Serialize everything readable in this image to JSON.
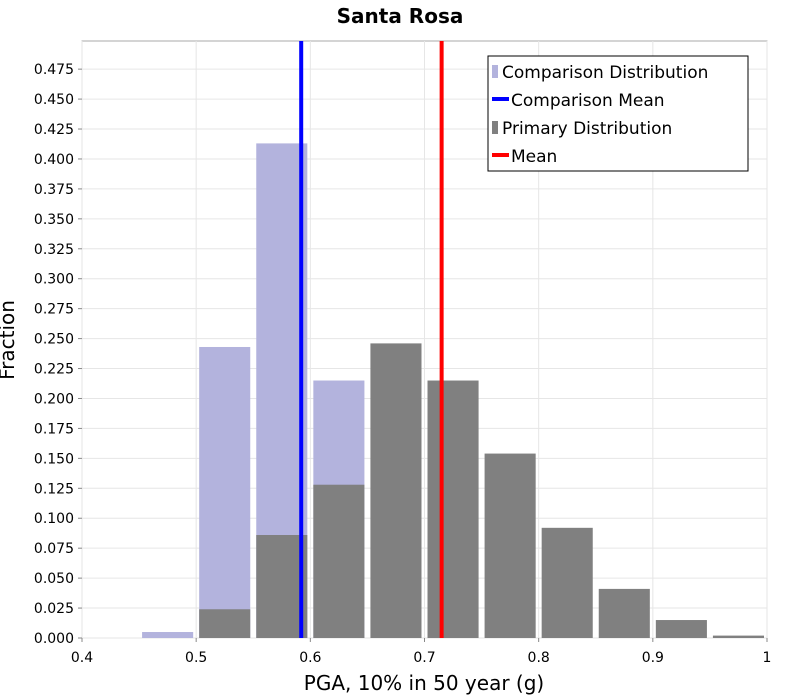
{
  "chart_data": {
    "type": "bar",
    "title": "Santa Rosa",
    "xlabel": "PGA, 10% in 50 year (g)",
    "ylabel": "Fraction",
    "xlim": [
      0.4,
      1.0
    ],
    "ylim": [
      0,
      0.4985
    ],
    "xticks": [
      "0.4",
      "0.5",
      "0.6",
      "0.7",
      "0.8",
      "0.9",
      "1"
    ],
    "yticks": [
      "0.000",
      "0.025",
      "0.050",
      "0.075",
      "0.100",
      "0.125",
      "0.150",
      "0.175",
      "0.200",
      "0.225",
      "0.250",
      "0.275",
      "0.300",
      "0.325",
      "0.350",
      "0.375",
      "0.400",
      "0.425",
      "0.450",
      "0.475"
    ],
    "bin_width": 0.05,
    "comparison_distribution": {
      "name": "Comparison Distribution",
      "color": "#b3b3dd",
      "bin_centers": [
        0.475,
        0.525,
        0.575,
        0.625
      ],
      "values": [
        0.005,
        0.243,
        0.413,
        0.215
      ]
    },
    "comparison_mean": {
      "name": "Comparison Mean",
      "color": "#0000ff",
      "value": 0.592
    },
    "primary_distribution": {
      "name": "Primary Distribution",
      "color": "#808080",
      "bin_centers": [
        0.525,
        0.575,
        0.625,
        0.675,
        0.725,
        0.775,
        0.825,
        0.875,
        0.925,
        0.975
      ],
      "values": [
        0.024,
        0.086,
        0.128,
        0.246,
        0.215,
        0.154,
        0.092,
        0.041,
        0.015,
        0.002
      ]
    },
    "mean": {
      "name": "Mean",
      "color": "#ff0000",
      "value": 0.715
    },
    "legend": [
      "Comparison Distribution",
      "Comparison Mean",
      "Primary Distribution",
      "Mean"
    ]
  }
}
